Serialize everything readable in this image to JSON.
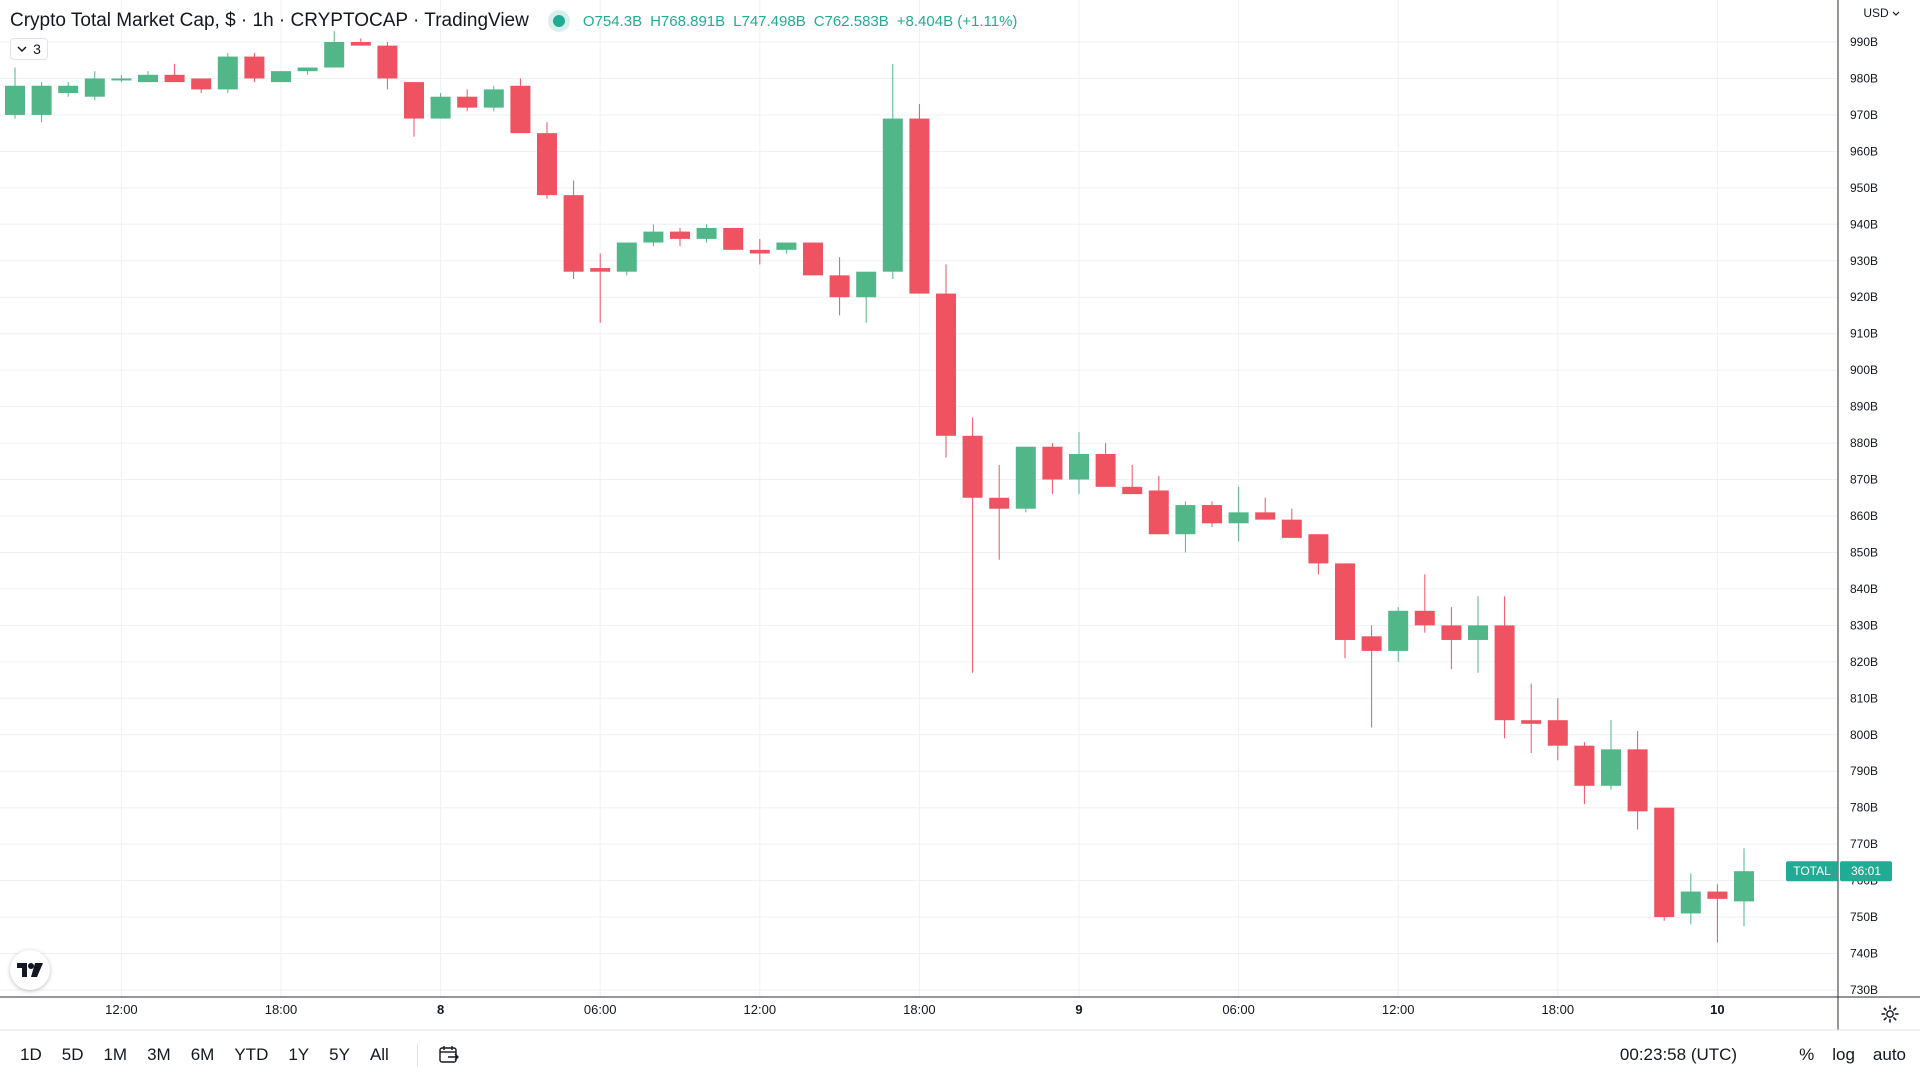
{
  "legend": {
    "title": "Crypto Total Market Cap, $ · 1h · CRYPTOCAP · TradingView",
    "open": "O754.3B",
    "high": "H768.891B",
    "low": "L747.498B",
    "close": "C762.583B",
    "change": "+8.404B (+1.11%)"
  },
  "indicators_toggle": {
    "count": "3"
  },
  "currency": "USD",
  "price_label": {
    "symbol": "TOTAL",
    "countdown": "36:01"
  },
  "bottom": {
    "ranges": [
      "1D",
      "5D",
      "1M",
      "3M",
      "6M",
      "YTD",
      "1Y",
      "5Y",
      "All"
    ],
    "clock": "00:23:58 (UTC)",
    "percent": "%",
    "log": "log",
    "auto": "auto"
  },
  "colors": {
    "up": "#52b788",
    "down": "#ef5361",
    "up_label": "#22ab94",
    "grid": "#eef1f5",
    "axis_text": "#131722"
  },
  "icons": [
    "chevron-down-icon",
    "calendar-goto-icon",
    "settings-gear-icon",
    "tradingview-logo-icon"
  ],
  "chart_data": {
    "type": "candlestick",
    "title": "Crypto Total Market Cap, $ · 1h · CRYPTOCAP · TradingView",
    "y_unit": "USD",
    "y_ticks": [
      "990B",
      "980B",
      "970B",
      "960B",
      "950B",
      "940B",
      "930B",
      "920B",
      "910B",
      "900B",
      "890B",
      "880B",
      "870B",
      "860B",
      "850B",
      "840B",
      "830B",
      "820B",
      "810B",
      "800B",
      "790B",
      "780B",
      "770B",
      "760B",
      "750B",
      "740B",
      "730B"
    ],
    "ylim": [
      727,
      1000
    ],
    "x_ticks": [
      {
        "label": "12:00",
        "hour": 4
      },
      {
        "label": "18:00",
        "hour": 10
      },
      {
        "label": "8",
        "hour": 16
      },
      {
        "label": "06:00",
        "hour": 22
      },
      {
        "label": "12:00",
        "hour": 28
      },
      {
        "label": "18:00",
        "hour": 34
      },
      {
        "label": "9",
        "hour": 40
      },
      {
        "label": "06:00",
        "hour": 46
      },
      {
        "label": "12:00",
        "hour": 52
      },
      {
        "label": "18:00",
        "hour": 58
      },
      {
        "label": "10",
        "hour": 64
      }
    ],
    "grid": true,
    "ohlc": [
      {
        "o": 970,
        "h": 983,
        "l": 969,
        "c": 978
      },
      {
        "o": 970,
        "h": 979,
        "l": 968,
        "c": 978
      },
      {
        "o": 976,
        "h": 979,
        "l": 975,
        "c": 978
      },
      {
        "o": 975,
        "h": 982,
        "l": 974,
        "c": 980
      },
      {
        "o": 980,
        "h": 981,
        "l": 979,
        "c": 980
      },
      {
        "o": 979,
        "h": 982,
        "l": 979,
        "c": 981
      },
      {
        "o": 981,
        "h": 984,
        "l": 979,
        "c": 979
      },
      {
        "o": 980,
        "h": 980,
        "l": 976,
        "c": 977
      },
      {
        "o": 977,
        "h": 987,
        "l": 976,
        "c": 986
      },
      {
        "o": 986,
        "h": 987,
        "l": 979,
        "c": 980
      },
      {
        "o": 979,
        "h": 982,
        "l": 979,
        "c": 982
      },
      {
        "o": 982,
        "h": 983,
        "l": 981,
        "c": 983
      },
      {
        "o": 983,
        "h": 993,
        "l": 983,
        "c": 990
      },
      {
        "o": 990,
        "h": 991,
        "l": 989,
        "c": 989
      },
      {
        "o": 989,
        "h": 990,
        "l": 977,
        "c": 980
      },
      {
        "o": 979,
        "h": 979,
        "l": 964,
        "c": 969
      },
      {
        "o": 969,
        "h": 976,
        "l": 969,
        "c": 975
      },
      {
        "o": 975,
        "h": 977,
        "l": 971,
        "c": 972
      },
      {
        "o": 972,
        "h": 978,
        "l": 971,
        "c": 977
      },
      {
        "o": 978,
        "h": 980,
        "l": 965,
        "c": 965
      },
      {
        "o": 965,
        "h": 968,
        "l": 947,
        "c": 948
      },
      {
        "o": 948,
        "h": 952,
        "l": 925,
        "c": 927
      },
      {
        "o": 928,
        "h": 932,
        "l": 913,
        "c": 927
      },
      {
        "o": 927,
        "h": 935,
        "l": 926,
        "c": 935
      },
      {
        "o": 935,
        "h": 940,
        "l": 934,
        "c": 938
      },
      {
        "o": 938,
        "h": 939,
        "l": 934,
        "c": 936
      },
      {
        "o": 936,
        "h": 940,
        "l": 935,
        "c": 939
      },
      {
        "o": 939,
        "h": 939,
        "l": 933,
        "c": 933
      },
      {
        "o": 933,
        "h": 936,
        "l": 929,
        "c": 932
      },
      {
        "o": 933,
        "h": 935,
        "l": 932,
        "c": 935
      },
      {
        "o": 935,
        "h": 935,
        "l": 926,
        "c": 926
      },
      {
        "o": 926,
        "h": 931,
        "l": 915,
        "c": 920
      },
      {
        "o": 920,
        "h": 927,
        "l": 913,
        "c": 927
      },
      {
        "o": 927,
        "h": 984,
        "l": 925,
        "c": 969
      },
      {
        "o": 969,
        "h": 973,
        "l": 921,
        "c": 921
      },
      {
        "o": 921,
        "h": 929,
        "l": 876,
        "c": 882
      },
      {
        "o": 882,
        "h": 887,
        "l": 817,
        "c": 865
      },
      {
        "o": 865,
        "h": 874,
        "l": 848,
        "c": 862
      },
      {
        "o": 862,
        "h": 879,
        "l": 861,
        "c": 879
      },
      {
        "o": 879,
        "h": 880,
        "l": 866,
        "c": 870
      },
      {
        "o": 870,
        "h": 883,
        "l": 866,
        "c": 877
      },
      {
        "o": 877,
        "h": 880,
        "l": 868,
        "c": 868
      },
      {
        "o": 868,
        "h": 874,
        "l": 867,
        "c": 866
      },
      {
        "o": 867,
        "h": 871,
        "l": 855,
        "c": 855
      },
      {
        "o": 855,
        "h": 864,
        "l": 850,
        "c": 863
      },
      {
        "o": 863,
        "h": 864,
        "l": 857,
        "c": 858
      },
      {
        "o": 858,
        "h": 868,
        "l": 853,
        "c": 861
      },
      {
        "o": 861,
        "h": 865,
        "l": 859,
        "c": 859
      },
      {
        "o": 859,
        "h": 862,
        "l": 854,
        "c": 854
      },
      {
        "o": 855,
        "h": 855,
        "l": 844,
        "c": 847
      },
      {
        "o": 847,
        "h": 847,
        "l": 821,
        "c": 826
      },
      {
        "o": 827,
        "h": 830,
        "l": 802,
        "c": 823
      },
      {
        "o": 823,
        "h": 835,
        "l": 820,
        "c": 834
      },
      {
        "o": 834,
        "h": 844,
        "l": 828,
        "c": 830
      },
      {
        "o": 830,
        "h": 835,
        "l": 818,
        "c": 826
      },
      {
        "o": 826,
        "h": 838,
        "l": 817,
        "c": 830
      },
      {
        "o": 830,
        "h": 838,
        "l": 799,
        "c": 804
      },
      {
        "o": 804,
        "h": 814,
        "l": 795,
        "c": 803
      },
      {
        "o": 804,
        "h": 810,
        "l": 793,
        "c": 797
      },
      {
        "o": 797,
        "h": 798,
        "l": 781,
        "c": 786
      },
      {
        "o": 786,
        "h": 804,
        "l": 785,
        "c": 796
      },
      {
        "o": 796,
        "h": 801,
        "l": 774,
        "c": 779
      },
      {
        "o": 780,
        "h": 780,
        "l": 749,
        "c": 750
      },
      {
        "o": 751,
        "h": 762,
        "l": 748,
        "c": 757
      },
      {
        "o": 757,
        "h": 759,
        "l": 743,
        "c": 755
      },
      {
        "o": 754.3,
        "h": 768.891,
        "l": 747.498,
        "c": 762.583
      }
    ]
  }
}
